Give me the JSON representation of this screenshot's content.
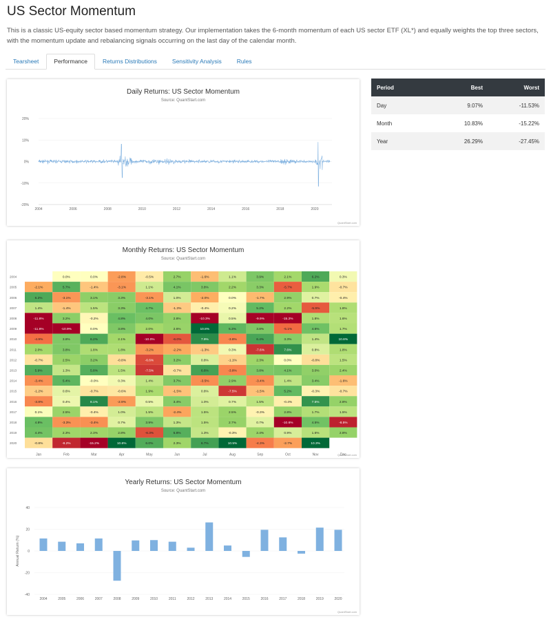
{
  "page": {
    "title": "US Sector Momentum",
    "intro": "This is a classic US-equity sector based momentum strategy. Our implementation takes the 6-month momentum of each US sector ETF (XL*) and equally weights the top three sectors, with the momentum update and rebalancing signals occurring on the last day of the calendar month."
  },
  "tabs": [
    "Tearsheet",
    "Performance",
    "Returns Distributions",
    "Sensitivity Analysis",
    "Rules"
  ],
  "active_tab": "Performance",
  "credit_text": "QuantStart.com",
  "period_table": {
    "headers": [
      "Period",
      "Best",
      "Worst"
    ],
    "rows": [
      [
        "Day",
        "9.07%",
        "-11.53%"
      ],
      [
        "Month",
        "10.83%",
        "-15.22%"
      ],
      [
        "Year",
        "26.29%",
        "-27.45%"
      ]
    ]
  },
  "colors": {
    "daily_line": "#7fb1e0",
    "yearly_bar": "#7fb1e0",
    "heat_neg_strong": "#a50026",
    "heat_neutral": "#ffffbf",
    "heat_pos_strong": "#006837"
  },
  "chart_data": [
    {
      "type": "line",
      "title": "Daily Returns: US Sector Momentum",
      "subtitle": "Source: QuantStart.com",
      "x_ticks": [
        "2004",
        "2006",
        "2008",
        "2010",
        "2012",
        "2014",
        "2016",
        "2018",
        "2020"
      ],
      "y_ticks": [
        "20%",
        "10%",
        "0%",
        "-10%",
        "-20%"
      ],
      "ylim": [
        -20,
        20
      ],
      "xlim": [
        "2004-01",
        "2021-01"
      ],
      "series": [
        {
          "values_note_free": true,
          "best": 9.07,
          "worst": -11.53
        }
      ]
    },
    {
      "type": "heatmap",
      "title": "Monthly Returns: US Sector Momentum",
      "subtitle": "Source: QuantStart.com",
      "years": [
        "2004",
        "2005",
        "2006",
        "2007",
        "2008",
        "2009",
        "2010",
        "2011",
        "2012",
        "2013",
        "2014",
        "2015",
        "2016",
        "2017",
        "2018",
        "2019",
        "2020"
      ],
      "months": [
        "Jan",
        "Feb",
        "Mar",
        "Apr",
        "May",
        "Jun",
        "Jul",
        "Aug",
        "Sep",
        "Oct",
        "Nov",
        "Dec"
      ],
      "values": [
        [
          null,
          "0.0%",
          "0.0%",
          "-2.8%",
          "-0.5%",
          "2.7%",
          "-1.6%",
          "1.1%",
          "3.9%",
          "2.1%",
          "6.2%",
          "0.3%"
        ],
        [
          "-2.1%",
          "5.7%",
          "-1.4%",
          "-3.1%",
          "1.1%",
          "4.1%",
          "3.8%",
          "2.2%",
          "3.3%",
          "-5.7%",
          "1.9%",
          "-0.7%"
        ],
        [
          "6.2%",
          "-3.1%",
          "3.1%",
          "3.3%",
          "-3.1%",
          "1.0%",
          "-2.0%",
          "0.0%",
          "-1.7%",
          "2.9%",
          "0.7%",
          "-0.4%"
        ],
        [
          "1.4%",
          "-1.4%",
          "1.5%",
          "3.3%",
          "4.7%",
          "-1.3%",
          "-0.4%",
          "0.2%",
          "5.2%",
          "2.2%",
          "-5.9%",
          "1.8%"
        ],
        [
          "-11.8%",
          "3.2%",
          "-0.2%",
          "4.8%",
          "4.0%",
          "2.8%",
          "-10.3%",
          "0.5%",
          "-9.9%",
          "-15.2%",
          "1.8%",
          "1.6%"
        ],
        [
          "-11.8%",
          "-10.9%",
          "0.0%",
          "3.8%",
          "2.0%",
          "2.6%",
          "10.8%",
          "5.3%",
          "3.8%",
          "-5.1%",
          "4.6%",
          "1.7%"
        ],
        [
          "-4.9%",
          "3.8%",
          "6.2%",
          "2.1%",
          "-10.0%",
          "-6.0%",
          "7.9%",
          "-3.8%",
          "6.4%",
          "3.3%",
          "1.4%",
          "10.8%"
        ],
        [
          "2.0%",
          "3.8%",
          "1.8%",
          "1.8%",
          "-3.2%",
          "-2.2%",
          "-1.3%",
          "0.3%",
          "-7.6%",
          "7.6%",
          "0.8%",
          "1.8%"
        ],
        [
          "-0.7%",
          "2.5%",
          "3.2%",
          "-0.8%",
          "-6.6%",
          "3.2%",
          "0.8%",
          "-1.1%",
          "2.3%",
          "0.0%",
          "-0.8%",
          "1.5%"
        ],
        [
          "5.9%",
          "1.3%",
          "5.8%",
          "1.5%",
          "-7.5%",
          "-0.7%",
          "6.6%",
          "-3.8%",
          "3.8%",
          "4.1%",
          "3.0%",
          "2.4%"
        ],
        [
          "-3.4%",
          "5.4%",
          "-0.0%",
          "0.3%",
          "1.4%",
          "3.7%",
          "-3.5%",
          "2.9%",
          "-3.4%",
          "1.4%",
          "3.4%",
          "-1.6%"
        ],
        [
          "-1.2%",
          "0.6%",
          "-0.7%",
          "-0.6%",
          "1.9%",
          "-1.5%",
          "0.8%",
          "-7.5%",
          "-1.5%",
          "5.2%",
          "-0.3%",
          "-0.7%"
        ],
        [
          "-3.8%",
          "0.4%",
          "8.1%",
          "-2.9%",
          "0.5%",
          "3.4%",
          "1.0%",
          "0.7%",
          "1.5%",
          "-0.4%",
          "7.5%",
          "2.8%"
        ],
        [
          "0.1%",
          "2.5%",
          "-0.4%",
          "1.0%",
          "1.5%",
          "-2.4%",
          "1.5%",
          "2.5%",
          "-0.3%",
          "2.8%",
          "1.7%",
          "1.5%"
        ],
        [
          "4.8%",
          "-3.3%",
          "-3.4%",
          "0.7%",
          "3.9%",
          "1.3%",
          "1.5%",
          "2.7%",
          "0.7%",
          "-10.6%",
          "4.5%",
          "-8.5%"
        ],
        [
          "4.4%",
          "2.3%",
          "2.3%",
          "2.8%",
          "-6.3%",
          "5.8%",
          "1.3%",
          "-0.3%",
          "2.4%",
          "0.9%",
          "1.6%",
          "2.8%"
        ],
        [
          "-0.8%",
          "-8.2%",
          "-15.2%",
          "10.6%",
          "6.0%",
          "2.3%",
          "6.7%",
          "10.5%",
          "-4.3%",
          "-2.7%",
          "10.3%",
          null
        ]
      ]
    },
    {
      "type": "bar",
      "title": "Yearly Returns: US Sector Momentum",
      "subtitle": "Source: QuantStart.com",
      "ylabel": "Annual Return (%)",
      "categories": [
        "2004",
        "2005",
        "2006",
        "2007",
        "2008",
        "2009",
        "2010",
        "2011",
        "2012",
        "2013",
        "2014",
        "2015",
        "2016",
        "2017",
        "2018",
        "2019",
        "2020"
      ],
      "values": [
        11.5,
        8.5,
        7.0,
        11.5,
        -27.45,
        9.7,
        10.0,
        8.5,
        3.0,
        26.29,
        5.0,
        -5.5,
        19.5,
        12.5,
        -2.5,
        21.5,
        19.5
      ],
      "y_ticks": [
        "40",
        "20",
        "0",
        "-20",
        "-40"
      ],
      "ylim": [
        -40,
        40
      ]
    }
  ]
}
